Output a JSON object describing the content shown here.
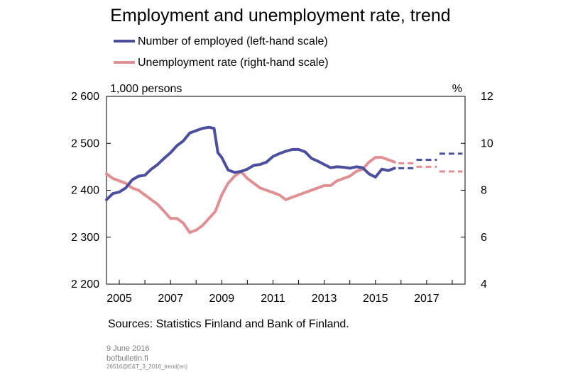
{
  "chart_data": {
    "type": "line",
    "title": "Employment and unemployment rate, trend",
    "left_unit": "1,000 persons",
    "right_unit": "%",
    "left_axis": {
      "ylim": [
        2200,
        2600
      ],
      "ticks": [
        "2 200",
        "2 300",
        "2 400",
        "2 500",
        "2 600"
      ],
      "tick_values": [
        2200,
        2300,
        2400,
        2500,
        2600
      ]
    },
    "right_axis": {
      "ylim": [
        4,
        12
      ],
      "ticks": [
        "4",
        "6",
        "8",
        "10",
        "12"
      ],
      "tick_values": [
        4,
        6,
        8,
        10,
        12
      ]
    },
    "x_axis": {
      "xlim": [
        2004.5,
        2018.5
      ],
      "ticks": [
        "2005",
        "2007",
        "2009",
        "2011",
        "2013",
        "2015",
        "2017"
      ],
      "tick_values": [
        2005,
        2007,
        2009,
        2011,
        2013,
        2015,
        2017
      ]
    },
    "grid": false,
    "legend_position": "top",
    "series": [
      {
        "name": "Number of employed (left-hand scale)",
        "axis": "left",
        "color": "#4b4f9e",
        "values": [
          [
            2004.5,
            2380
          ],
          [
            2004.75,
            2393
          ],
          [
            2005.0,
            2396
          ],
          [
            2005.25,
            2405
          ],
          [
            2005.5,
            2422
          ],
          [
            2005.75,
            2430
          ],
          [
            2006.0,
            2432
          ],
          [
            2006.25,
            2445
          ],
          [
            2006.5,
            2455
          ],
          [
            2006.75,
            2468
          ],
          [
            2007.0,
            2480
          ],
          [
            2007.25,
            2495
          ],
          [
            2007.5,
            2505
          ],
          [
            2007.75,
            2522
          ],
          [
            2008.0,
            2527
          ],
          [
            2008.25,
            2532
          ],
          [
            2008.5,
            2534
          ],
          [
            2008.7,
            2532
          ],
          [
            2008.85,
            2480
          ],
          [
            2009.0,
            2470
          ],
          [
            2009.25,
            2443
          ],
          [
            2009.5,
            2438
          ],
          [
            2009.75,
            2440
          ],
          [
            2010.0,
            2445
          ],
          [
            2010.25,
            2453
          ],
          [
            2010.5,
            2455
          ],
          [
            2010.75,
            2460
          ],
          [
            2011.0,
            2472
          ],
          [
            2011.25,
            2478
          ],
          [
            2011.5,
            2483
          ],
          [
            2011.75,
            2487
          ],
          [
            2012.0,
            2487
          ],
          [
            2012.25,
            2482
          ],
          [
            2012.5,
            2468
          ],
          [
            2012.75,
            2462
          ],
          [
            2013.0,
            2455
          ],
          [
            2013.25,
            2448
          ],
          [
            2013.5,
            2450
          ],
          [
            2013.75,
            2449
          ],
          [
            2014.0,
            2447
          ],
          [
            2014.25,
            2450
          ],
          [
            2014.5,
            2448
          ],
          [
            2014.75,
            2435
          ],
          [
            2015.0,
            2428
          ],
          [
            2015.25,
            2445
          ],
          [
            2015.5,
            2442
          ],
          [
            2015.75,
            2447
          ]
        ]
      },
      {
        "name": "Unemployment rate (right-hand scale)",
        "axis": "right",
        "color": "#e08f93",
        "values": [
          [
            2004.5,
            8.7
          ],
          [
            2004.75,
            8.5
          ],
          [
            2005.0,
            8.4
          ],
          [
            2005.25,
            8.3
          ],
          [
            2005.5,
            8.1
          ],
          [
            2005.75,
            8.0
          ],
          [
            2006.0,
            7.8
          ],
          [
            2006.25,
            7.6
          ],
          [
            2006.5,
            7.4
          ],
          [
            2006.75,
            7.1
          ],
          [
            2007.0,
            6.8
          ],
          [
            2007.25,
            6.8
          ],
          [
            2007.5,
            6.6
          ],
          [
            2007.75,
            6.2
          ],
          [
            2008.0,
            6.3
          ],
          [
            2008.25,
            6.5
          ],
          [
            2008.5,
            6.8
          ],
          [
            2008.75,
            7.1
          ],
          [
            2009.0,
            7.8
          ],
          [
            2009.25,
            8.3
          ],
          [
            2009.5,
            8.6
          ],
          [
            2009.75,
            8.8
          ],
          [
            2010.0,
            8.5
          ],
          [
            2010.25,
            8.3
          ],
          [
            2010.5,
            8.1
          ],
          [
            2010.75,
            8.0
          ],
          [
            2011.0,
            7.9
          ],
          [
            2011.25,
            7.8
          ],
          [
            2011.5,
            7.6
          ],
          [
            2011.75,
            7.7
          ],
          [
            2012.0,
            7.8
          ],
          [
            2012.25,
            7.9
          ],
          [
            2012.5,
            8.0
          ],
          [
            2012.75,
            8.1
          ],
          [
            2013.0,
            8.2
          ],
          [
            2013.25,
            8.2
          ],
          [
            2013.5,
            8.4
          ],
          [
            2013.75,
            8.5
          ],
          [
            2014.0,
            8.6
          ],
          [
            2014.25,
            8.8
          ],
          [
            2014.5,
            8.9
          ],
          [
            2014.75,
            9.2
          ],
          [
            2015.0,
            9.4
          ],
          [
            2015.25,
            9.4
          ],
          [
            2015.5,
            9.3
          ],
          [
            2015.75,
            9.2
          ]
        ]
      }
    ],
    "forecasts": [
      {
        "series": "Number of employed (left-hand scale)",
        "axis": "left",
        "color": "#4b4f9e",
        "x": [
          2015.9,
          2016.5
        ],
        "value": 2447
      },
      {
        "series": "Number of employed (left-hand scale)",
        "axis": "left",
        "color": "#4b4f9e",
        "x": [
          2016.6,
          2017.4
        ],
        "value": 2465
      },
      {
        "series": "Number of employed (left-hand scale)",
        "axis": "left",
        "color": "#4b4f9e",
        "x": [
          2017.5,
          2018.4
        ],
        "value": 2478
      },
      {
        "series": "Unemployment rate (right-hand scale)",
        "axis": "right",
        "color": "#e08f93",
        "x": [
          2015.9,
          2016.5
        ],
        "value": 9.15
      },
      {
        "series": "Unemployment rate (right-hand scale)",
        "axis": "right",
        "color": "#e08f93",
        "x": [
          2016.6,
          2017.4
        ],
        "value": 9.0
      },
      {
        "series": "Unemployment rate (right-hand scale)",
        "axis": "right",
        "color": "#e08f93",
        "x": [
          2017.5,
          2018.4
        ],
        "value": 8.8
      }
    ]
  },
  "source": "Sources: Statistics Finland and Bank of Finland.",
  "footer": {
    "date": "9 June 2016",
    "site": "bofbulletin.fi",
    "code": "26516@E&T_3_2016_trend(en)"
  }
}
